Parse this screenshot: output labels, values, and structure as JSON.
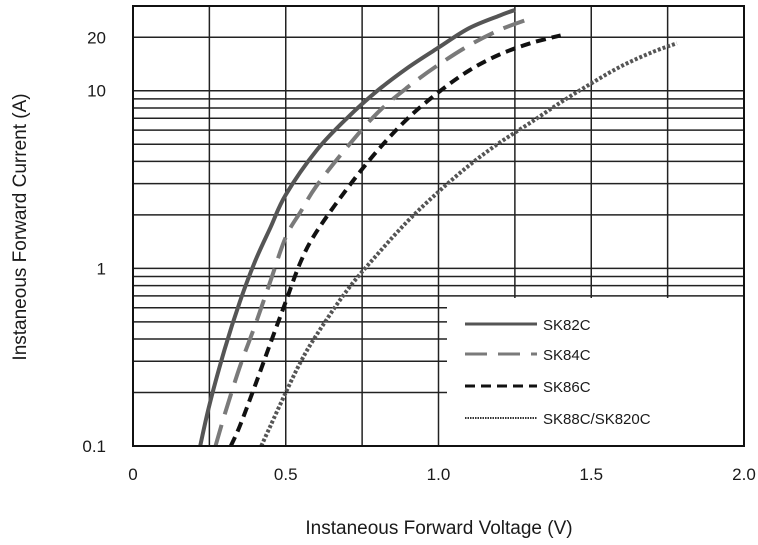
{
  "chart_data": {
    "type": "line",
    "xlabel": "Instaneous Forward Voltage (V)",
    "ylabel": "Instaneous Forward Current  (A)",
    "xlim": [
      0,
      2.0
    ],
    "ylim": [
      0.1,
      30
    ],
    "yscale": "log",
    "grid": true,
    "legend_position": "bottom-right",
    "x_ticks": [
      {
        "value": 0,
        "label": "0"
      },
      {
        "value": 0.5,
        "label": "0.5"
      },
      {
        "value": 1.0,
        "label": "1.0"
      },
      {
        "value": 1.5,
        "label": "1.5"
      },
      {
        "value": 2.0,
        "label": "2.0"
      }
    ],
    "y_ticks": [
      {
        "value": 0.1,
        "label": "0.1"
      },
      {
        "value": 1,
        "label": "1"
      },
      {
        "value": 10,
        "label": "10"
      },
      {
        "value": 20,
        "label": "20"
      }
    ],
    "x_grid": [
      0.25,
      0.5,
      0.75,
      1.0,
      1.25,
      1.5,
      1.75
    ],
    "y_grid": [
      0.2,
      0.3,
      0.4,
      0.5,
      0.6,
      0.7,
      0.8,
      0.9,
      1,
      2,
      3,
      4,
      5,
      6,
      7,
      8,
      9,
      10,
      20
    ],
    "series": [
      {
        "name": "SK82C",
        "color": "#555555",
        "dash": "solid",
        "x": [
          0.22,
          0.25,
          0.3,
          0.35,
          0.4,
          0.45,
          0.5,
          0.6,
          0.7,
          0.8,
          0.9,
          1.0,
          1.1,
          1.2,
          1.25
        ],
        "y": [
          0.1,
          0.17,
          0.35,
          0.65,
          1.1,
          1.7,
          2.6,
          4.6,
          7.0,
          10.0,
          13.5,
          17.5,
          22.5,
          26.5,
          28.5
        ]
      },
      {
        "name": "SK84C",
        "color": "#7a7a7a",
        "dash": "long-dash",
        "x": [
          0.27,
          0.3,
          0.35,
          0.4,
          0.45,
          0.5,
          0.55,
          0.6,
          0.7,
          0.8,
          0.9,
          1.0,
          1.1,
          1.2,
          1.3
        ],
        "y": [
          0.1,
          0.15,
          0.28,
          0.48,
          0.85,
          1.5,
          2.1,
          2.9,
          4.8,
          7.5,
          10.5,
          14.0,
          18.0,
          22.0,
          25.5
        ]
      },
      {
        "name": "SK86C",
        "color": "#111111",
        "dash": "short-dash",
        "x": [
          0.32,
          0.35,
          0.4,
          0.45,
          0.5,
          0.55,
          0.6,
          0.7,
          0.8,
          0.9,
          1.0,
          1.1,
          1.2,
          1.3,
          1.4
        ],
        "y": [
          0.1,
          0.13,
          0.22,
          0.38,
          0.65,
          1.1,
          1.6,
          2.8,
          4.6,
          7.0,
          9.8,
          13.0,
          16.0,
          18.5,
          20.5
        ]
      },
      {
        "name": "SK88C/SK820C",
        "color": "#555555",
        "dash": "dotted",
        "x": [
          0.42,
          0.45,
          0.5,
          0.55,
          0.6,
          0.7,
          0.8,
          0.9,
          1.0,
          1.1,
          1.2,
          1.3,
          1.4,
          1.5,
          1.6,
          1.7,
          1.78
        ],
        "y": [
          0.1,
          0.13,
          0.2,
          0.3,
          0.42,
          0.75,
          1.2,
          1.85,
          2.7,
          3.8,
          5.1,
          6.6,
          8.6,
          11.0,
          13.8,
          16.5,
          18.5
        ]
      }
    ]
  }
}
